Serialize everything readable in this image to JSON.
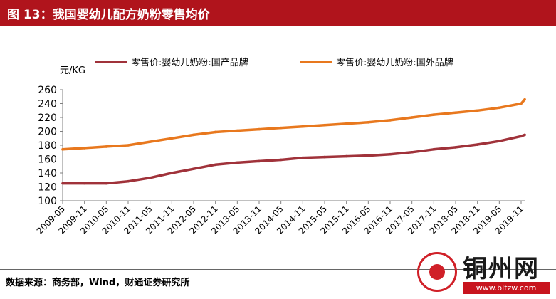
{
  "header": {
    "title": "图 13：我国婴幼儿配方奶粉零售均价"
  },
  "footer": {
    "source": "数据来源：商务部，Wind，财通证券研究所"
  },
  "watermark": {
    "name": "铜州网",
    "url": "www.bltzw.com"
  },
  "colors": {
    "title_bar": "#b0141c",
    "domestic": "#a0323a",
    "foreign": "#e8781e",
    "axis": "#808080"
  },
  "chart_data": {
    "type": "line",
    "ylabel": "元/KG",
    "ylim": [
      100,
      260
    ],
    "yticks": [
      100,
      120,
      140,
      160,
      180,
      200,
      220,
      240,
      260
    ],
    "x_tick_labels": [
      "2009-05",
      "2009-11",
      "2010-05",
      "2010-11",
      "2011-05",
      "2011-11",
      "2012-05",
      "2012-11",
      "2013-05",
      "2013-11",
      "2014-05",
      "2014-11",
      "2015-05",
      "2015-11",
      "2016-05",
      "2016-11",
      "2017-05",
      "2017-11",
      "2018-05",
      "2018-11",
      "2019-05",
      "2019-11"
    ],
    "legend_position": "top",
    "series": [
      {
        "name": "零售价:婴幼儿奶粉:国产品牌",
        "color": "#a0323a",
        "x": [
          "2009-05",
          "2009-11",
          "2010-05",
          "2010-11",
          "2011-05",
          "2011-11",
          "2012-05",
          "2012-11",
          "2013-05",
          "2013-11",
          "2014-05",
          "2014-11",
          "2015-05",
          "2015-11",
          "2016-05",
          "2016-11",
          "2017-05",
          "2017-11",
          "2018-05",
          "2018-11",
          "2019-05",
          "2019-11",
          "2019-12"
        ],
        "values": [
          125,
          125,
          125,
          128,
          133,
          140,
          146,
          152,
          155,
          157,
          159,
          162,
          163,
          164,
          165,
          167,
          170,
          174,
          177,
          181,
          186,
          193,
          195
        ]
      },
      {
        "name": "零售价:婴幼儿奶粉:国外品牌",
        "color": "#e8781e",
        "x": [
          "2009-05",
          "2009-11",
          "2010-05",
          "2010-11",
          "2011-05",
          "2011-11",
          "2012-05",
          "2012-11",
          "2013-05",
          "2013-11",
          "2014-05",
          "2014-11",
          "2015-05",
          "2015-11",
          "2016-05",
          "2016-11",
          "2017-05",
          "2017-11",
          "2018-05",
          "2018-11",
          "2019-05",
          "2019-11",
          "2019-12"
        ],
        "values": [
          174,
          176,
          178,
          180,
          185,
          190,
          195,
          199,
          201,
          203,
          205,
          207,
          209,
          211,
          213,
          216,
          220,
          224,
          227,
          230,
          234,
          240,
          246
        ]
      }
    ]
  }
}
